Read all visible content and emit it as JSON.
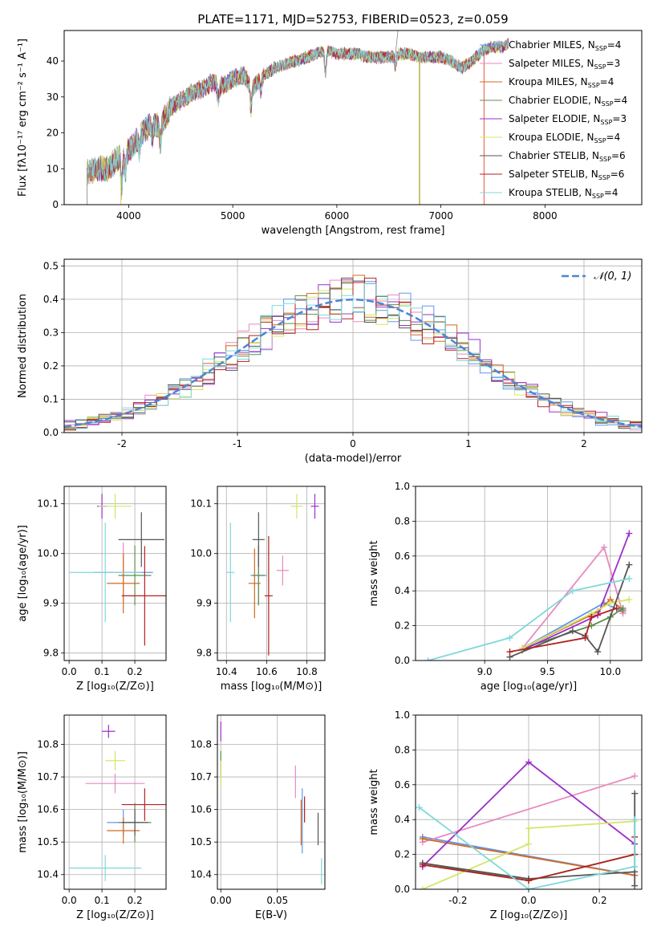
{
  "figure_title": "PLATE=1171, MJD=52753, FIBERID=0523, z=0.059",
  "series_colors": [
    "#6495ED",
    "#E88AC0",
    "#D2691E",
    "#5F8E4C",
    "#9B30C8",
    "#D4E66A",
    "#555555",
    "#B22222",
    "#7FD8DC"
  ],
  "chart_data": [
    {
      "id": "spectrum",
      "type": "line",
      "xlabel": "wavelength [Angstrom, rest frame]",
      "ylabel": "Flux [fλ10⁻¹⁷ erg cm⁻² s⁻¹ A⁻¹]",
      "xlim": [
        3380,
        8930
      ],
      "ylim": [
        0,
        48.5
      ],
      "xticks": [
        4000,
        5000,
        6000,
        7000,
        8000
      ],
      "yticks": [
        0,
        10,
        20,
        30,
        40
      ],
      "grid": false,
      "legend_position": "right",
      "legend": [
        "Chabrier MILES, N_SSP=4",
        "Salpeter MILES, N_SSP=3",
        "Kroupa MILES, N_SSP=4",
        "Chabrier ELODIE, N_SSP=4",
        "Salpeter ELODIE, N_SSP=3",
        "Kroupa ELODIE, N_SSP=4",
        "Chabrier STELIB, N_SSP=6",
        "Salpeter STELIB, N_SSP=6",
        "Kroupa STELIB, N_SSP=4"
      ],
      "continuum": [
        [
          3600,
          9
        ],
        [
          3700,
          10
        ],
        [
          3800,
          10
        ],
        [
          3900,
          13
        ],
        [
          4000,
          15
        ],
        [
          4100,
          19
        ],
        [
          4200,
          22
        ],
        [
          4300,
          22
        ],
        [
          4400,
          27
        ],
        [
          4500,
          29
        ],
        [
          4600,
          31
        ],
        [
          4700,
          32
        ],
        [
          4800,
          34
        ],
        [
          4900,
          33
        ],
        [
          5000,
          35
        ],
        [
          5100,
          36
        ],
        [
          5200,
          33
        ],
        [
          5300,
          36
        ],
        [
          5400,
          38
        ],
        [
          5500,
          39
        ],
        [
          5600,
          40
        ],
        [
          5700,
          41
        ],
        [
          5800,
          42
        ],
        [
          5900,
          43
        ],
        [
          6000,
          42
        ],
        [
          6100,
          42
        ],
        [
          6200,
          42
        ],
        [
          6300,
          41
        ],
        [
          6400,
          41
        ],
        [
          6500,
          41
        ],
        [
          6600,
          42
        ],
        [
          6700,
          42
        ],
        [
          6800,
          41
        ],
        [
          6900,
          41
        ],
        [
          7000,
          41
        ],
        [
          7100,
          40
        ],
        [
          7200,
          38
        ],
        [
          7300,
          40
        ],
        [
          7400,
          43
        ],
        [
          7500,
          44
        ],
        [
          7600,
          44
        ],
        [
          7650,
          45
        ]
      ],
      "dips": [
        [
          3933,
          -9
        ],
        [
          3968,
          -5
        ],
        [
          4102,
          -4
        ],
        [
          4227,
          -3
        ],
        [
          4304,
          -5
        ],
        [
          4861,
          -4
        ],
        [
          5175,
          -7
        ],
        [
          5270,
          -3
        ],
        [
          5890,
          -6
        ],
        [
          6563,
          -3
        ]
      ]
    },
    {
      "id": "residuals",
      "type": "histogram",
      "xlabel": "(data-model)/error",
      "ylabel": "Normed distribution",
      "xlim": [
        -2.5,
        2.5
      ],
      "ylim": [
        0,
        0.52
      ],
      "xticks": [
        -2,
        -1,
        0,
        1,
        2
      ],
      "yticks": [
        0.0,
        0.1,
        0.2,
        0.3,
        0.4,
        0.5
      ],
      "grid": true,
      "legend": [
        "𝒩(0, 1)"
      ],
      "legend_position": "top-right",
      "bin_width": 0.1
    },
    {
      "id": "age-vs-Z",
      "type": "errorbar",
      "xlabel": "Z [log₁₀(Z/Z⊙)]",
      "ylabel": "age  [log₁₀(age/yr)]",
      "xlim": [
        -0.015,
        0.295
      ],
      "ylim": [
        9.785,
        10.135
      ],
      "xticks": [
        0.0,
        0.1,
        0.2
      ],
      "yticks": [
        9.8,
        9.9,
        10.0,
        10.1
      ],
      "points": [
        {
          "x": 0.165,
          "y": 9.962,
          "xerr": 0.09,
          "yerr": 0.0
        },
        {
          "x": 0.165,
          "y": 9.962,
          "xerr": 0.05,
          "yerr": 0.06
        },
        {
          "x": 0.165,
          "y": 9.94,
          "xerr": 0.05,
          "yerr": 0.06
        },
        {
          "x": 0.2,
          "y": 9.956,
          "xerr": 0.05,
          "yerr": 0.06
        },
        {
          "x": 0.1,
          "y": 10.095,
          "xerr": 0.015,
          "yerr": 0.025
        },
        {
          "x": 0.14,
          "y": 10.095,
          "xerr": 0.05,
          "yerr": 0.025
        },
        {
          "x": 0.22,
          "y": 10.028,
          "xerr": 0.07,
          "yerr": 0.055
        },
        {
          "x": 0.23,
          "y": 9.915,
          "xerr": 0.07,
          "yerr": 0.1
        },
        {
          "x": 0.11,
          "y": 9.962,
          "xerr": 0.11,
          "yerr": 0.1
        }
      ]
    },
    {
      "id": "age-vs-mass",
      "type": "errorbar",
      "xlabel": "mass [log₁₀(M/M⊙)]",
      "ylabel": "",
      "xlim": [
        10.355,
        10.89
      ],
      "ylim": [
        9.785,
        10.135
      ],
      "xticks": [
        10.4,
        10.6,
        10.8
      ],
      "yticks": [
        9.8,
        9.9,
        10.0,
        10.1
      ],
      "points": [
        {
          "x": 10.56,
          "y": 9.956,
          "xerr": 0.04,
          "yerr": 0.06
        },
        {
          "x": 10.68,
          "y": 9.966,
          "xerr": 0.03,
          "yerr": 0.03
        },
        {
          "x": 10.54,
          "y": 9.94,
          "xerr": 0.03,
          "yerr": 0.07
        },
        {
          "x": 10.56,
          "y": 9.956,
          "xerr": 0.03,
          "yerr": 0.06
        },
        {
          "x": 10.84,
          "y": 10.095,
          "xerr": 0.02,
          "yerr": 0.025
        },
        {
          "x": 10.75,
          "y": 10.095,
          "xerr": 0.03,
          "yerr": 0.025
        },
        {
          "x": 10.56,
          "y": 10.028,
          "xerr": 0.03,
          "yerr": 0.055
        },
        {
          "x": 10.61,
          "y": 9.915,
          "xerr": 0.02,
          "yerr": 0.12
        },
        {
          "x": 10.42,
          "y": 9.962,
          "xerr": 0.02,
          "yerr": 0.1
        }
      ]
    },
    {
      "id": "mass-weight-vs-age",
      "type": "line",
      "xlabel": "age  [log₁₀(age/yr)]",
      "ylabel": "mass weight",
      "xlim": [
        8.45,
        10.25
      ],
      "ylim": [
        0,
        1.0
      ],
      "xticks": [
        9.0,
        9.5,
        10.0
      ],
      "yticks": [
        0.0,
        0.2,
        0.4,
        0.6,
        0.8,
        1.0
      ],
      "series": [
        {
          "x": [
            9.3,
            9.95,
            10.1
          ],
          "y": [
            0.07,
            0.33,
            0.28
          ]
        },
        {
          "x": [
            9.3,
            9.95,
            10.1
          ],
          "y": [
            0.07,
            0.65,
            0.27
          ]
        },
        {
          "x": [
            9.3,
            9.9,
            10.0,
            10.1
          ],
          "y": [
            0.07,
            0.28,
            0.35,
            0.29
          ]
        },
        {
          "x": [
            9.3,
            9.85,
            10.0,
            10.1
          ],
          "y": [
            0.07,
            0.2,
            0.25,
            0.3
          ]
        },
        {
          "x": [
            9.3,
            9.9,
            10.15
          ],
          "y": [
            0.06,
            0.26,
            0.73
          ]
        },
        {
          "x": [
            9.3,
            9.85,
            10.0,
            10.15
          ],
          "y": [
            0.07,
            0.27,
            0.33,
            0.35
          ]
        },
        {
          "x": [
            9.2,
            9.7,
            9.8,
            9.9,
            10.15
          ],
          "y": [
            0.02,
            0.17,
            0.14,
            0.05,
            0.55
          ]
        },
        {
          "x": [
            9.2,
            9.8,
            9.85,
            10.05
          ],
          "y": [
            0.05,
            0.13,
            0.25,
            0.3
          ]
        },
        {
          "x": [
            8.55,
            9.2,
            9.7,
            10.15
          ],
          "y": [
            0.0,
            0.13,
            0.4,
            0.47
          ]
        }
      ]
    },
    {
      "id": "mass-vs-Z",
      "type": "errorbar",
      "xlabel": "Z [log₁₀(Z/Z⊙)]",
      "ylabel": "mass [log₁₀(M/M⊙)]",
      "xlim": [
        -0.015,
        0.295
      ],
      "ylim": [
        10.355,
        10.89
      ],
      "xticks": [
        0.0,
        0.1,
        0.2
      ],
      "yticks": [
        10.4,
        10.5,
        10.6,
        10.7,
        10.8
      ],
      "points": [
        {
          "x": 0.165,
          "y": 10.56,
          "xerr": 0.05,
          "yerr": 0.04
        },
        {
          "x": 0.14,
          "y": 10.68,
          "xerr": 0.09,
          "yerr": 0.03
        },
        {
          "x": 0.165,
          "y": 10.535,
          "xerr": 0.05,
          "yerr": 0.04
        },
        {
          "x": 0.2,
          "y": 10.56,
          "xerr": 0.05,
          "yerr": 0.06
        },
        {
          "x": 0.12,
          "y": 10.84,
          "xerr": 0.02,
          "yerr": 0.02
        },
        {
          "x": 0.14,
          "y": 10.75,
          "xerr": 0.03,
          "yerr": 0.03
        },
        {
          "x": 0.2,
          "y": 10.56,
          "xerr": 0.04,
          "yerr": 0.04
        },
        {
          "x": 0.23,
          "y": 10.615,
          "xerr": 0.07,
          "yerr": 0.05
        },
        {
          "x": 0.11,
          "y": 10.42,
          "xerr": 0.11,
          "yerr": 0.04
        }
      ]
    },
    {
      "id": "mass-vs-ebv",
      "type": "errorbar",
      "xlabel": "E(B-V)",
      "ylabel": "",
      "xlim": [
        -0.003,
        0.092
      ],
      "ylim": [
        10.355,
        10.89
      ],
      "xticks": [
        0.0,
        0.05
      ],
      "yticks": [
        10.4,
        10.5,
        10.6,
        10.7,
        10.8
      ],
      "points": [
        {
          "x": 0.072,
          "y": 10.565,
          "xerr": 0.0,
          "yerr": 0.1
        },
        {
          "x": 0.066,
          "y": 10.685,
          "xerr": 0.0,
          "yerr": 0.05
        },
        {
          "x": 0.071,
          "y": 10.56,
          "xerr": 0.0,
          "yerr": 0.07
        },
        {
          "x": 0.0,
          "y": 10.74,
          "xerr": 0.0,
          "yerr": 0.04
        },
        {
          "x": 0.0,
          "y": 10.84,
          "xerr": 0.0,
          "yerr": 0.03
        },
        {
          "x": 0.0,
          "y": 10.71,
          "xerr": 0.0,
          "yerr": 0.04
        },
        {
          "x": 0.086,
          "y": 10.54,
          "xerr": 0.0,
          "yerr": 0.05
        },
        {
          "x": 0.074,
          "y": 10.6,
          "xerr": 0.0,
          "yerr": 0.04
        },
        {
          "x": 0.089,
          "y": 10.41,
          "xerr": 0.0,
          "yerr": 0.04
        }
      ]
    },
    {
      "id": "mass-weight-vs-Z",
      "type": "line",
      "xlabel": "Z [log₁₀(Z/Z⊙)]",
      "ylabel": "mass weight",
      "xlim": [
        -0.32,
        0.32
      ],
      "ylim": [
        0,
        1.0
      ],
      "xticks": [
        -0.2,
        0.0,
        0.2
      ],
      "yticks": [
        0.0,
        0.2,
        0.4,
        0.6,
        0.8,
        1.0
      ],
      "series": [
        {
          "x": [
            -0.3,
            0.3
          ],
          "y": [
            0.3,
            0.08
          ]
        },
        {
          "x": [
            -0.3,
            0.3
          ],
          "y": [
            0.27,
            0.65
          ]
        },
        {
          "x": [
            -0.3,
            0.3
          ],
          "y": [
            0.29,
            0.08
          ]
        },
        {
          "x": [
            -0.3,
            0.0,
            0.3
          ],
          "y": [
            0.15,
            0.05,
            0.2
          ]
        },
        {
          "x": [
            -0.3,
            0.0,
            0.3
          ],
          "y": [
            0.13,
            0.73,
            0.26
          ]
        },
        {
          "x": [
            -0.3,
            0.0,
            0.0,
            0.3
          ],
          "y": [
            0.0,
            0.26,
            0.35,
            0.39
          ]
        },
        {
          "x": [
            -0.3,
            0.0,
            0.3,
            0.3,
            0.3
          ],
          "y": [
            0.15,
            0.06,
            0.1,
            0.02,
            0.55
          ]
        },
        {
          "x": [
            -0.3,
            0.0,
            0.3,
            0.3
          ],
          "y": [
            0.14,
            0.05,
            0.2,
            0.3
          ]
        },
        {
          "x": [
            -0.31,
            0.0,
            0.3,
            0.3
          ],
          "y": [
            0.47,
            0.0,
            0.13,
            0.4
          ]
        }
      ]
    }
  ]
}
